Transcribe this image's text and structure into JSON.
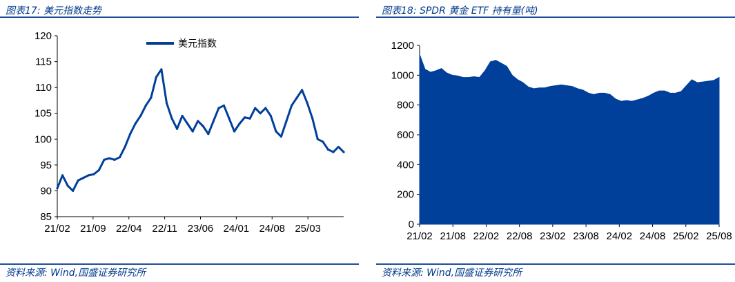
{
  "left": {
    "title": "图表17:  美元指数走势",
    "source": "资料来源:  Wind,国盛证券研究所",
    "chart_data": {
      "type": "line",
      "title": "",
      "xlabel": "",
      "ylabel": "",
      "ylim": [
        85,
        120
      ],
      "yticks": [
        "85",
        "90",
        "95",
        "100",
        "105",
        "110",
        "115",
        "120"
      ],
      "x_tick_labels": [
        "21/02",
        "21/09",
        "22/04",
        "22/11",
        "23/06",
        "24/01",
        "24/08",
        "25/03"
      ],
      "legend": "top-center",
      "series": [
        {
          "name": "美元指数",
          "color": "#003f9a",
          "x": [
            "2021-02",
            "2021-03",
            "2021-04",
            "2021-05",
            "2021-06",
            "2021-07",
            "2021-08",
            "2021-09",
            "2021-10",
            "2021-11",
            "2021-12",
            "2022-01",
            "2022-02",
            "2022-03",
            "2022-04",
            "2022-05",
            "2022-06",
            "2022-07",
            "2022-08",
            "2022-09",
            "2022-10",
            "2022-11",
            "2022-12",
            "2023-01",
            "2023-02",
            "2023-03",
            "2023-04",
            "2023-05",
            "2023-06",
            "2023-07",
            "2023-08",
            "2023-09",
            "2023-10",
            "2023-11",
            "2023-12",
            "2024-01",
            "2024-02",
            "2024-03",
            "2024-04",
            "2024-05",
            "2024-06",
            "2024-07",
            "2024-08",
            "2024-09",
            "2024-10",
            "2024-11",
            "2024-12",
            "2025-01",
            "2025-02",
            "2025-03",
            "2025-04",
            "2025-05",
            "2025-06",
            "2025-07",
            "2025-08",
            "2025-09"
          ],
          "values": [
            90.5,
            93.0,
            91.0,
            90.0,
            92.0,
            92.5,
            93.0,
            93.2,
            94.0,
            96.0,
            96.3,
            96.0,
            96.5,
            98.5,
            101.0,
            103.0,
            104.5,
            106.5,
            108.0,
            112.0,
            113.5,
            107.0,
            104.0,
            102.0,
            104.5,
            103.0,
            101.5,
            103.5,
            102.5,
            101.0,
            103.5,
            106.0,
            106.5,
            104.0,
            101.5,
            103.0,
            104.2,
            104.0,
            106.0,
            105.0,
            106.0,
            104.5,
            101.5,
            100.5,
            103.5,
            106.5,
            108.0,
            109.5,
            107.0,
            104.0,
            100.0,
            99.5,
            98.0,
            97.5,
            98.5,
            97.5
          ]
        }
      ]
    }
  },
  "right": {
    "title": "图表18:  SPDR 黄金 ETF 持有量(吨)",
    "source": "资料来源:  Wind,国盛证券研究所",
    "chart_data": {
      "type": "area",
      "title": "",
      "xlabel": "",
      "ylabel": "",
      "ylim": [
        0,
        1200
      ],
      "yticks": [
        "0",
        "200",
        "400",
        "600",
        "800",
        "1000",
        "1200"
      ],
      "x_tick_labels": [
        "21/02",
        "21/08",
        "22/02",
        "22/08",
        "23/02",
        "23/08",
        "24/02",
        "24/08",
        "25/02",
        "25/08"
      ],
      "series": [
        {
          "name": "",
          "color": "#003f9a",
          "x": [
            "2021-02",
            "2021-03",
            "2021-04",
            "2021-05",
            "2021-06",
            "2021-07",
            "2021-08",
            "2021-09",
            "2021-10",
            "2021-11",
            "2021-12",
            "2022-01",
            "2022-02",
            "2022-03",
            "2022-04",
            "2022-05",
            "2022-06",
            "2022-07",
            "2022-08",
            "2022-09",
            "2022-10",
            "2022-11",
            "2022-12",
            "2023-01",
            "2023-02",
            "2023-03",
            "2023-04",
            "2023-05",
            "2023-06",
            "2023-07",
            "2023-08",
            "2023-09",
            "2023-10",
            "2023-11",
            "2023-12",
            "2024-01",
            "2024-02",
            "2024-03",
            "2024-04",
            "2024-05",
            "2024-06",
            "2024-07",
            "2024-08",
            "2024-09",
            "2024-10",
            "2024-11",
            "2024-12",
            "2025-01",
            "2025-02",
            "2025-03",
            "2025-04",
            "2025-05",
            "2025-06",
            "2025-07",
            "2025-08",
            "2025-09"
          ],
          "values": [
            1140,
            1040,
            1020,
            1030,
            1045,
            1015,
            1000,
            995,
            985,
            985,
            990,
            985,
            1030,
            1090,
            1100,
            1080,
            1060,
            1000,
            970,
            950,
            920,
            910,
            915,
            915,
            925,
            930,
            935,
            930,
            925,
            910,
            900,
            880,
            870,
            880,
            880,
            870,
            840,
            825,
            830,
            825,
            835,
            845,
            860,
            880,
            895,
            895,
            880,
            880,
            890,
            930,
            970,
            950,
            955,
            960,
            965,
            985
          ]
        }
      ]
    }
  }
}
